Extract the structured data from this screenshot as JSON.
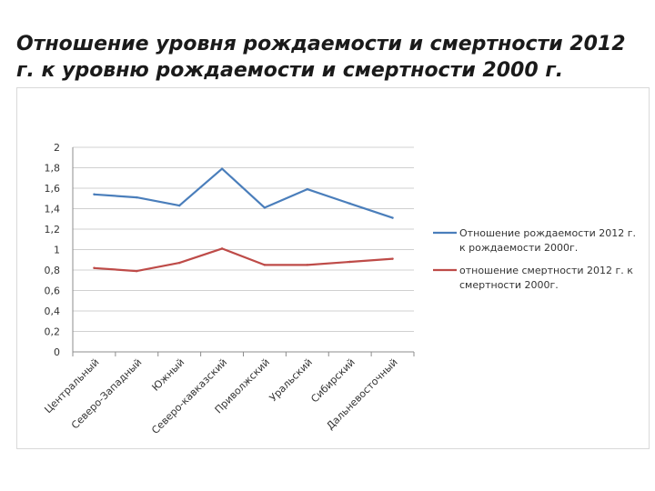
{
  "title_lines": [
    "Отношение уровня рождаемости и смертности 2012",
    "г. к уровню рождаемости и смертности 2000 г."
  ],
  "chart_data": {
    "type": "line",
    "categories": [
      "Центральный",
      "Северо-Западный",
      "Южный",
      "Северо-кавказский",
      "Приволжский",
      "Уральский",
      "Сибирский",
      "Дальневосточный"
    ],
    "ylim": [
      0,
      2
    ],
    "yticks": [
      "0",
      "0,2",
      "0,4",
      "0,6",
      "0,8",
      "1",
      "1,2",
      "1,4",
      "1,6",
      "1,8",
      "2"
    ],
    "grid": true,
    "legend_position": "right",
    "series": [
      {
        "legend_lines": [
          "Отношение рождаемости 2012 г.",
          "к рождаемости 2000г."
        ],
        "color": "#4a7ebb",
        "values": [
          1.54,
          1.51,
          1.43,
          1.79,
          1.41,
          1.59,
          1.45,
          1.31
        ]
      },
      {
        "legend_lines": [
          "отношение смертности 2012 г. к",
          "смертности 2000г."
        ],
        "color": "#be4b48",
        "values": [
          0.82,
          0.79,
          0.87,
          1.01,
          0.85,
          0.85,
          0.88,
          0.91
        ]
      }
    ]
  }
}
